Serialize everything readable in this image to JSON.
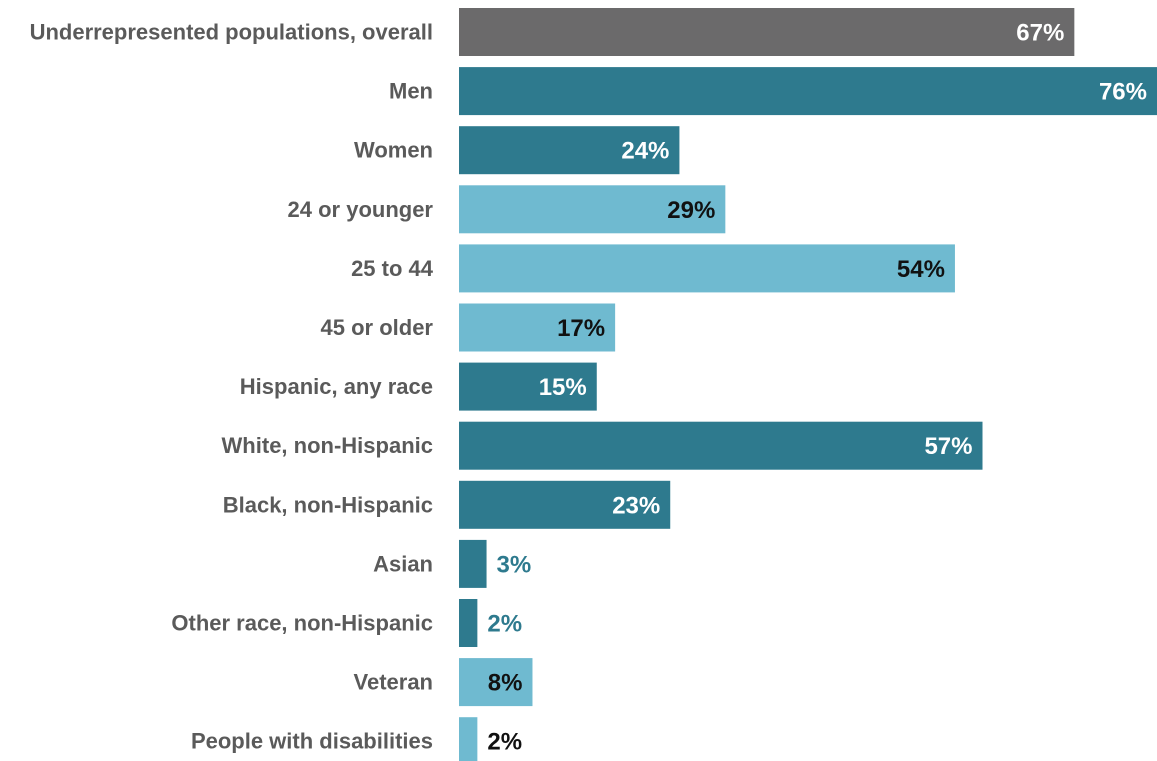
{
  "chart_data": {
    "type": "bar",
    "orientation": "horizontal",
    "title": "",
    "xlabel": "",
    "ylabel": "",
    "xlim": [
      0,
      76
    ],
    "grid": false,
    "legend": "none",
    "categories": [
      "Underrepresented populations, overall",
      "Men",
      "Women",
      "24 or younger",
      "25 to 44",
      "45 or older",
      "Hispanic, any race",
      "White, non-Hispanic",
      "Black, non-Hispanic",
      "Asian",
      "Other race, non-Hispanic",
      "Veteran",
      "People with disabilities"
    ],
    "values": [
      67,
      76,
      24,
      29,
      54,
      17,
      15,
      57,
      23,
      3,
      2,
      8,
      2
    ],
    "value_labels": [
      "67%",
      "76%",
      "24%",
      "29%",
      "54%",
      "17%",
      "15%",
      "57%",
      "23%",
      "3%",
      "2%",
      "8%",
      "2%"
    ],
    "bar_colors": [
      "#6b6a6b",
      "#2e7a8e",
      "#2e7a8e",
      "#6fbad0",
      "#6fbad0",
      "#6fbad0",
      "#2e7a8e",
      "#2e7a8e",
      "#2e7a8e",
      "#2e7a8e",
      "#2e7a8e",
      "#6fbad0",
      "#6fbad0"
    ],
    "label_colors": [
      "#ffffff",
      "#ffffff",
      "#ffffff",
      "#111111",
      "#111111",
      "#111111",
      "#ffffff",
      "#ffffff",
      "#ffffff",
      "#2e7a8e",
      "#2e7a8e",
      "#111111",
      "#111111"
    ],
    "label_colors_outside": "used when the bar is too short to hold its label"
  }
}
